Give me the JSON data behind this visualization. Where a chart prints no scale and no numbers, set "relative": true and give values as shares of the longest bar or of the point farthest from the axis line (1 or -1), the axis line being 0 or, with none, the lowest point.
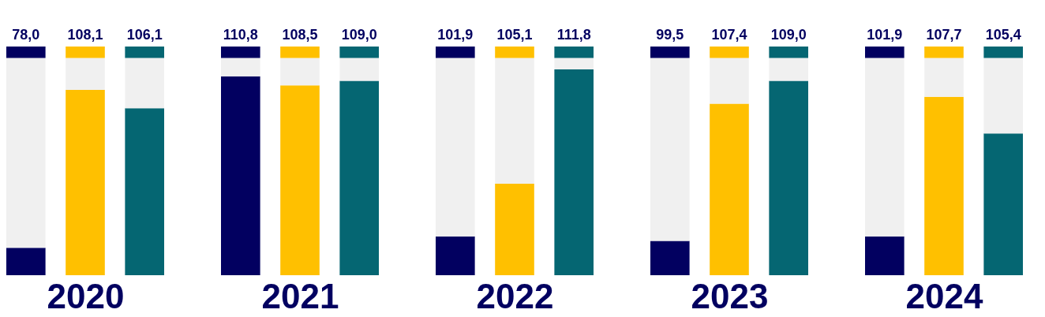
{
  "chart_data": [
    {
      "type": "bar",
      "xlabel": "2020",
      "categories": [
        null,
        null,
        null
      ],
      "stacked": true,
      "relative": true,
      "annotations": [
        "78,0",
        "108,1",
        "106,1"
      ],
      "series": [
        {
          "colors": [
            "#020060",
            "#ffc000",
            "#056672"
          ],
          "values": [
            0.12,
            0.81,
            0.73
          ]
        },
        {
          "color": "#f0f0f0",
          "values": [
            0.83,
            0.14,
            0.22
          ]
        },
        {
          "colors": [
            "#020060",
            "#ffc000",
            "#056672"
          ],
          "values": [
            0.05,
            0.05,
            0.05
          ]
        }
      ]
    },
    {
      "type": "bar",
      "xlabel": "2021",
      "categories": [
        null,
        null,
        null
      ],
      "stacked": true,
      "relative": true,
      "annotations": [
        "110,8",
        "108,5",
        "109,0"
      ],
      "series": [
        {
          "colors": [
            "#020060",
            "#ffc000",
            "#056672"
          ],
          "values": [
            0.87,
            0.83,
            0.85
          ]
        },
        {
          "color": "#f0f0f0",
          "values": [
            0.08,
            0.12,
            0.1
          ]
        },
        {
          "colors": [
            "#020060",
            "#ffc000",
            "#056672"
          ],
          "values": [
            0.05,
            0.05,
            0.05
          ]
        }
      ]
    },
    {
      "type": "bar",
      "xlabel": "2022",
      "categories": [
        null,
        null,
        null
      ],
      "stacked": true,
      "relative": true,
      "annotations": [
        "101,9",
        "105,1",
        "111,8"
      ],
      "series": [
        {
          "colors": [
            "#020060",
            "#ffc000",
            "#056672"
          ],
          "values": [
            0.17,
            0.4,
            0.9
          ]
        },
        {
          "color": "#f0f0f0",
          "values": [
            0.78,
            0.55,
            0.05
          ]
        },
        {
          "colors": [
            "#020060",
            "#ffc000",
            "#056672"
          ],
          "values": [
            0.05,
            0.05,
            0.05
          ]
        }
      ]
    },
    {
      "type": "bar",
      "xlabel": "2023",
      "categories": [
        null,
        null,
        null
      ],
      "stacked": true,
      "relative": true,
      "annotations": [
        "99,5",
        "107,4",
        "109,0"
      ],
      "series": [
        {
          "colors": [
            "#020060",
            "#ffc000",
            "#056672"
          ],
          "values": [
            0.15,
            0.75,
            0.85
          ]
        },
        {
          "color": "#f0f0f0",
          "values": [
            0.8,
            0.2,
            0.1
          ]
        },
        {
          "colors": [
            "#020060",
            "#ffc000",
            "#056672"
          ],
          "values": [
            0.05,
            0.05,
            0.05
          ]
        }
      ]
    },
    {
      "type": "bar",
      "xlabel": "2024",
      "categories": [
        null,
        null,
        null
      ],
      "stacked": true,
      "relative": true,
      "annotations": [
        "101,9",
        "107,7",
        "105,4"
      ],
      "series": [
        {
          "colors": [
            "#020060",
            "#ffc000",
            "#056672"
          ],
          "values": [
            0.17,
            0.78,
            0.62
          ]
        },
        {
          "color": "#f0f0f0",
          "values": [
            0.78,
            0.17,
            0.33
          ]
        },
        {
          "colors": [
            "#020060",
            "#ffc000",
            "#056672"
          ],
          "values": [
            0.05,
            0.05,
            0.05
          ]
        }
      ]
    }
  ]
}
